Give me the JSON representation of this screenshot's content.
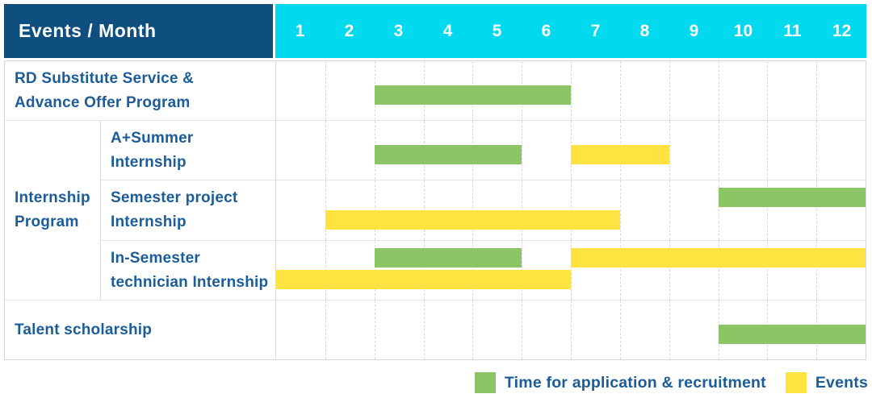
{
  "header": {
    "title": "Events / Month",
    "months": [
      "1",
      "2",
      "3",
      "4",
      "5",
      "6",
      "7",
      "8",
      "9",
      "10",
      "11",
      "12"
    ]
  },
  "group_label_lines": [
    "Internship",
    "Program"
  ],
  "rows": [
    {
      "label_lines": [
        "RD Substitute Service &",
        "Advance Offer Program"
      ],
      "group": null,
      "bars": [
        {
          "type": "recruitment",
          "start": 3,
          "end": 6,
          "line": "center"
        }
      ]
    },
    {
      "label_lines": [
        "A+Summer",
        "Internship"
      ],
      "group": "Internship Program",
      "bars": [
        {
          "type": "recruitment",
          "start": 3,
          "end": 5,
          "line": "center"
        },
        {
          "type": "events",
          "start": 7,
          "end": 8,
          "line": "center"
        }
      ]
    },
    {
      "label_lines": [
        "Semester project",
        "Internship"
      ],
      "group": "Internship Program",
      "bars": [
        {
          "type": "recruitment",
          "start": 10,
          "end": 12,
          "line": "top"
        },
        {
          "type": "events",
          "start": 2,
          "end": 7,
          "line": "bottom"
        }
      ]
    },
    {
      "label_lines": [
        "In-Semester",
        "technician Internship"
      ],
      "group": "Internship Program",
      "bars": [
        {
          "type": "recruitment",
          "start": 3,
          "end": 5,
          "line": "top"
        },
        {
          "type": "events",
          "start": 7,
          "end": 12,
          "line": "top"
        },
        {
          "type": "events",
          "start": 1,
          "end": 6,
          "line": "bottom"
        }
      ]
    },
    {
      "label_lines": [
        "Talent scholarship"
      ],
      "group": null,
      "bars": [
        {
          "type": "recruitment",
          "start": 10,
          "end": 12,
          "line": "center"
        }
      ]
    }
  ],
  "legend": [
    {
      "type": "recruitment",
      "label": "Time for application & recruitment",
      "color": "#8bc566"
    },
    {
      "type": "events",
      "label": "Events",
      "color": "#ffe340"
    }
  ],
  "colors": {
    "navy": "#0f4f80",
    "cyan": "#00d9ee",
    "green": "#8bc566",
    "yellow": "#ffe340",
    "label_text": "#1b5c99",
    "grid": "#d9d9d9"
  },
  "chart_data": {
    "type": "bar",
    "subtype": "gantt",
    "title": "Events / Month",
    "xlabel": "Month",
    "x_ticks": [
      1,
      2,
      3,
      4,
      5,
      6,
      7,
      8,
      9,
      10,
      11,
      12
    ],
    "x_range": [
      1,
      12
    ],
    "grid": true,
    "legend_position": "bottom-right",
    "legend": [
      "Time for application & recruitment",
      "Events"
    ],
    "events": [
      {
        "event": "RD Substitute Service & Advance Offer Program",
        "group": null,
        "spans": [
          {
            "series": "Time for application & recruitment",
            "start_month": 3,
            "end_month": 6
          }
        ]
      },
      {
        "event": "A+Summer Internship",
        "group": "Internship Program",
        "spans": [
          {
            "series": "Time for application & recruitment",
            "start_month": 3,
            "end_month": 5
          },
          {
            "series": "Events",
            "start_month": 7,
            "end_month": 8
          }
        ]
      },
      {
        "event": "Semester project Internship",
        "group": "Internship Program",
        "spans": [
          {
            "series": "Time for application & recruitment",
            "start_month": 10,
            "end_month": 12
          },
          {
            "series": "Events",
            "start_month": 2,
            "end_month": 7
          }
        ]
      },
      {
        "event": "In-Semester technician Internship",
        "group": "Internship Program",
        "spans": [
          {
            "series": "Time for application & recruitment",
            "start_month": 3,
            "end_month": 5
          },
          {
            "series": "Events",
            "start_month": 7,
            "end_month": 12
          },
          {
            "series": "Events",
            "start_month": 1,
            "end_month": 6
          }
        ]
      },
      {
        "event": "Talent scholarship",
        "group": null,
        "spans": [
          {
            "series": "Time for application & recruitment",
            "start_month": 10,
            "end_month": 12
          }
        ]
      }
    ]
  }
}
